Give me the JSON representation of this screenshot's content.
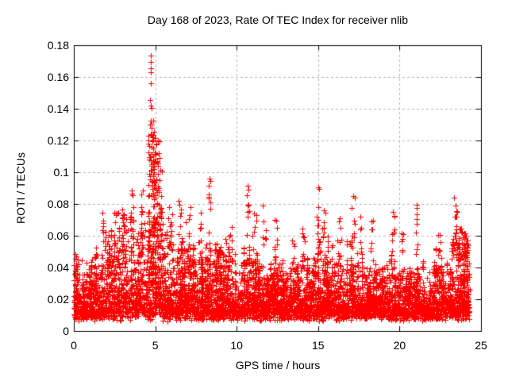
{
  "chart_data": {
    "type": "scatter",
    "title": "Day 168 of 2023, Rate Of TEC Index for receiver nlib",
    "xlabel": "GPS time / hours",
    "ylabel": "ROTI / TECUs",
    "xlim": [
      0,
      25
    ],
    "ylim": [
      0,
      0.18
    ],
    "xticks": [
      0,
      5,
      10,
      15,
      20,
      25
    ],
    "xtick_labels": [
      "0",
      "5",
      "10",
      "15",
      "20",
      "25"
    ],
    "yticks": [
      0,
      0.02,
      0.04,
      0.06,
      0.08,
      0.1,
      0.12,
      0.14,
      0.16,
      0.18
    ],
    "ytick_labels": [
      "0",
      "0.02",
      "0.04",
      "0.06",
      "0.08",
      "0.1",
      "0.12",
      "0.14",
      "0.16",
      "0.18"
    ],
    "grid": true,
    "legend": "none",
    "marker": {
      "shape": "plus",
      "size": 7,
      "color": "#ff0000"
    },
    "grid_color": "#b4b4b4",
    "border_color": "#000000",
    "background_color": "#ffffff",
    "x_data_max": 24.3,
    "noise_floor": 0.006,
    "seed": 168,
    "envelope": [
      [
        0,
        0.05
      ],
      [
        0.5,
        0.038
      ],
      [
        1,
        0.04
      ],
      [
        1.5,
        0.045
      ],
      [
        2,
        0.05
      ],
      [
        2.5,
        0.06
      ],
      [
        3,
        0.065
      ],
      [
        3.5,
        0.068
      ],
      [
        4,
        0.06
      ],
      [
        4.5,
        0.07
      ],
      [
        5,
        0.075
      ],
      [
        5.5,
        0.06
      ],
      [
        6,
        0.055
      ],
      [
        6.5,
        0.06
      ],
      [
        7,
        0.058
      ],
      [
        7.5,
        0.055
      ],
      [
        8,
        0.05
      ],
      [
        8.5,
        0.048
      ],
      [
        9,
        0.045
      ],
      [
        9.5,
        0.05
      ],
      [
        10,
        0.042
      ],
      [
        10.5,
        0.045
      ],
      [
        11,
        0.048
      ],
      [
        11.5,
        0.042
      ],
      [
        12,
        0.04
      ],
      [
        12.5,
        0.045
      ],
      [
        13,
        0.038
      ],
      [
        13.5,
        0.04
      ],
      [
        14,
        0.042
      ],
      [
        14.5,
        0.04
      ],
      [
        15,
        0.05
      ],
      [
        15.5,
        0.048
      ],
      [
        16,
        0.042
      ],
      [
        16.5,
        0.045
      ],
      [
        17,
        0.048
      ],
      [
        17.5,
        0.044
      ],
      [
        18,
        0.04
      ],
      [
        18.5,
        0.042
      ],
      [
        19,
        0.04
      ],
      [
        19.5,
        0.045
      ],
      [
        20,
        0.042
      ],
      [
        20.5,
        0.04
      ],
      [
        21,
        0.042
      ],
      [
        21.5,
        0.038
      ],
      [
        22,
        0.04
      ],
      [
        22.5,
        0.042
      ],
      [
        23,
        0.045
      ],
      [
        23.5,
        0.05
      ],
      [
        24,
        0.048
      ],
      [
        24.3,
        0.045
      ]
    ],
    "spikes": [
      {
        "x": 0.15,
        "w": 0.1,
        "lo": 0.03,
        "hi": 0.052,
        "n": 10
      },
      {
        "x": 0.55,
        "w": 0.08,
        "lo": 0.025,
        "hi": 0.045,
        "n": 8
      },
      {
        "x": 1.77,
        "w": 0.08,
        "lo": 0.045,
        "hi": 0.079,
        "n": 9
      },
      {
        "x": 2.0,
        "w": 0.12,
        "lo": 0.035,
        "hi": 0.063,
        "n": 12
      },
      {
        "x": 2.65,
        "w": 0.15,
        "lo": 0.04,
        "hi": 0.075,
        "n": 14
      },
      {
        "x": 3.05,
        "w": 0.15,
        "lo": 0.04,
        "hi": 0.078,
        "n": 16
      },
      {
        "x": 3.55,
        "w": 0.12,
        "lo": 0.045,
        "hi": 0.088,
        "n": 14
      },
      {
        "x": 4.2,
        "w": 0.15,
        "lo": 0.05,
        "hi": 0.09,
        "n": 12
      },
      {
        "x": 4.9,
        "w": 0.38,
        "lo": 0.03,
        "hi": 0.125,
        "n": 150,
        "bias": 1.25
      },
      {
        "x": 4.82,
        "w": 0.12,
        "lo": 0.088,
        "hi": 0.134,
        "n": 26
      },
      {
        "x": 5.32,
        "w": 0.09,
        "lo": 0.05,
        "hi": 0.102,
        "n": 14
      },
      {
        "x": 5.9,
        "w": 0.15,
        "lo": 0.04,
        "hi": 0.08,
        "n": 12
      },
      {
        "x": 6.45,
        "w": 0.15,
        "lo": 0.04,
        "hi": 0.083,
        "n": 14
      },
      {
        "x": 7.2,
        "w": 0.15,
        "lo": 0.04,
        "hi": 0.08,
        "n": 14
      },
      {
        "x": 7.75,
        "w": 0.1,
        "lo": 0.04,
        "hi": 0.075,
        "n": 10
      },
      {
        "x": 8.35,
        "w": 0.07,
        "lo": 0.05,
        "hi": 0.095,
        "n": 10
      },
      {
        "x": 9.0,
        "w": 0.1,
        "lo": 0.035,
        "hi": 0.06,
        "n": 8
      },
      {
        "x": 9.6,
        "w": 0.12,
        "lo": 0.04,
        "hi": 0.067,
        "n": 10
      },
      {
        "x": 10.7,
        "w": 0.08,
        "lo": 0.05,
        "hi": 0.091,
        "n": 9
      },
      {
        "x": 11.15,
        "w": 0.1,
        "lo": 0.04,
        "hi": 0.075,
        "n": 8
      },
      {
        "x": 11.7,
        "w": 0.1,
        "lo": 0.04,
        "hi": 0.08,
        "n": 8
      },
      {
        "x": 12.4,
        "w": 0.12,
        "lo": 0.035,
        "hi": 0.07,
        "n": 10
      },
      {
        "x": 13.5,
        "w": 0.1,
        "lo": 0.03,
        "hi": 0.06,
        "n": 8
      },
      {
        "x": 14.1,
        "w": 0.1,
        "lo": 0.035,
        "hi": 0.065,
        "n": 8
      },
      {
        "x": 15.0,
        "w": 0.09,
        "lo": 0.045,
        "hi": 0.09,
        "n": 12
      },
      {
        "x": 15.35,
        "w": 0.1,
        "lo": 0.04,
        "hi": 0.083,
        "n": 10
      },
      {
        "x": 16.3,
        "w": 0.12,
        "lo": 0.04,
        "hi": 0.075,
        "n": 10
      },
      {
        "x": 17.15,
        "w": 0.1,
        "lo": 0.05,
        "hi": 0.085,
        "n": 10
      },
      {
        "x": 17.6,
        "w": 0.1,
        "lo": 0.04,
        "hi": 0.072,
        "n": 8
      },
      {
        "x": 18.3,
        "w": 0.1,
        "lo": 0.04,
        "hi": 0.07,
        "n": 8
      },
      {
        "x": 19.6,
        "w": 0.12,
        "lo": 0.045,
        "hi": 0.077,
        "n": 10
      },
      {
        "x": 20.2,
        "w": 0.1,
        "lo": 0.035,
        "hi": 0.065,
        "n": 8
      },
      {
        "x": 21.07,
        "w": 0.06,
        "lo": 0.05,
        "hi": 0.08,
        "n": 6
      },
      {
        "x": 22.4,
        "w": 0.12,
        "lo": 0.035,
        "hi": 0.068,
        "n": 10
      },
      {
        "x": 23.45,
        "w": 0.12,
        "lo": 0.055,
        "hi": 0.084,
        "n": 8
      },
      {
        "x": 23.7,
        "w": 0.45,
        "lo": 0.045,
        "hi": 0.066,
        "n": 55
      },
      {
        "x": 24.05,
        "w": 0.1,
        "lo": 0.04,
        "hi": 0.062,
        "n": 12
      }
    ],
    "outliers": [
      [
        4.71,
        0.1735
      ],
      [
        4.73,
        0.1695
      ],
      [
        4.72,
        0.1655
      ],
      [
        4.74,
        0.163
      ],
      [
        4.75,
        0.156
      ],
      [
        4.7,
        0.1455
      ],
      [
        4.73,
        0.142
      ],
      [
        4.79,
        0.1405
      ],
      [
        4.68,
        0.13
      ],
      [
        4.8,
        0.128
      ],
      [
        8.32,
        0.096
      ],
      [
        8.38,
        0.0945
      ],
      [
        10.68,
        0.0915
      ],
      [
        15.0,
        0.0905
      ],
      [
        3.55,
        0.0885
      ],
      [
        23.35,
        0.084
      ],
      [
        17.15,
        0.085
      ],
      [
        21.07,
        0.0795
      ]
    ]
  }
}
